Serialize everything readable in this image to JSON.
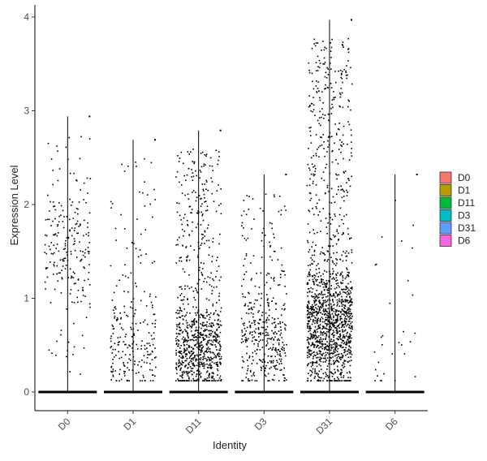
{
  "chart_data": {
    "type": "scatter",
    "subtype": "violin-jitter",
    "title": "",
    "xlabel": "Identity",
    "ylabel": "Expression Level",
    "ylim": [
      -0.2,
      4.1
    ],
    "y_ticks": [
      0,
      1,
      2,
      3,
      4
    ],
    "grid": false,
    "legend_position": "right",
    "categories": [
      "D0",
      "D1",
      "D11",
      "D3",
      "D31",
      "D6"
    ],
    "series": [
      {
        "name": "D0",
        "color": "#F8766D",
        "max": 2.94,
        "n_points": 520,
        "n_zero": 300,
        "mode": 1.6,
        "spread": 0.9
      },
      {
        "name": "D1",
        "color": "#B79F00",
        "max": 2.69,
        "n_points": 640,
        "n_zero": 400,
        "mode": 0.5,
        "spread": 1.0
      },
      {
        "name": "D11",
        "color": "#00BA38",
        "max": 2.79,
        "n_points": 1500,
        "n_zero": 600,
        "mode": 0.45,
        "spread": 0.7
      },
      {
        "name": "D3",
        "color": "#00BFC4",
        "max": 2.32,
        "n_points": 900,
        "n_zero": 500,
        "mode": 0.55,
        "spread": 0.8
      },
      {
        "name": "D31",
        "color": "#619CFF",
        "max": 3.97,
        "n_points": 2100,
        "n_zero": 600,
        "mode": 0.7,
        "spread": 1.0
      },
      {
        "name": "D6",
        "color": "#F564E3",
        "max": 2.32,
        "n_points": 330,
        "n_zero": 300,
        "mode": 0.45,
        "spread": 0.8
      }
    ]
  }
}
